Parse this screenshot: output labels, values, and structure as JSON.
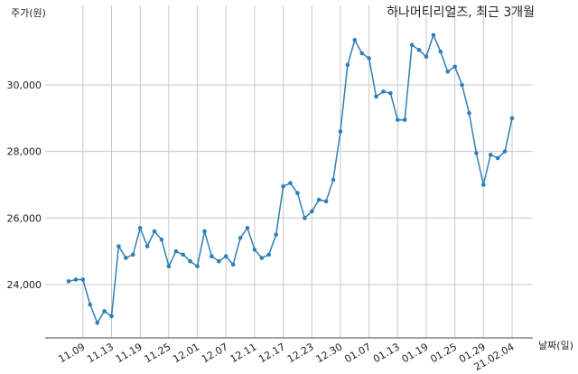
{
  "chart_data": {
    "type": "line",
    "title": "하나머티리얼즈, 최근 3개월",
    "ylabel": "주가(원)",
    "xlabel": "날짜(일)",
    "ylim": [
      22500,
      32500
    ],
    "yticks": [
      24000,
      26000,
      28000,
      30000
    ],
    "ytick_labels": [
      "24,000",
      "26,000",
      "28,000",
      "30,000"
    ],
    "grid": true,
    "line_color": "#2e7fb8",
    "xtick_labels": [
      "11.09",
      "11.13",
      "11.19",
      "11.25",
      "12.01",
      "12.07",
      "12.11",
      "12.17",
      "12.23",
      "12.30",
      "01.07",
      "01.13",
      "01.19",
      "01.25",
      "01.29",
      "21.02.04"
    ],
    "xtick_indices": [
      2,
      6,
      10,
      14,
      18,
      22,
      26,
      30,
      34,
      38,
      42,
      46,
      50,
      54,
      58,
      62
    ],
    "series": [
      {
        "values": [
          24100,
          24150,
          24150,
          23400,
          22850,
          23200,
          23050,
          25150,
          24800,
          24900,
          25700,
          25150,
          25600,
          25350,
          24550,
          25000,
          24900,
          24700,
          24550,
          25600,
          24850,
          24700,
          24850,
          24600,
          25400,
          25700,
          25050,
          24800,
          24900,
          25500,
          26950,
          27050,
          26750,
          26000,
          26200,
          26550,
          26500,
          27150,
          28600,
          30600,
          31350,
          30950,
          30800,
          29650,
          29800,
          29750,
          28950,
          28950,
          31200,
          31050,
          30850,
          31500,
          31000,
          30400,
          30550,
          30000,
          29150,
          27950,
          27000,
          27900,
          27800,
          28000,
          29000
        ]
      }
    ]
  }
}
